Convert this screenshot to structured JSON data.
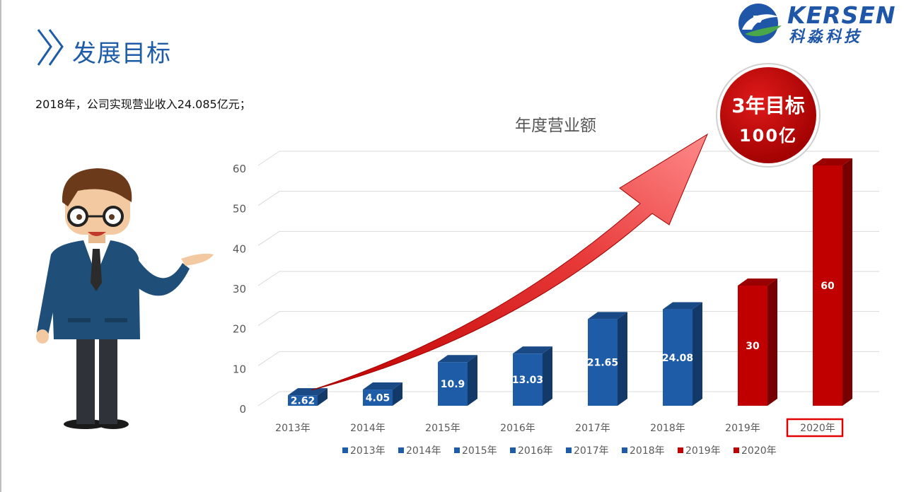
{
  "header": {
    "title": "发展目标",
    "summary": "2018年，公司实现营业收入24.085亿元；"
  },
  "logo": {
    "en": "KERSEN",
    "cn": "科淼科技"
  },
  "badge": {
    "line1": "3年目标",
    "line2": "100亿"
  },
  "colors": {
    "actual": "#1f5ca8",
    "target": "#c00000",
    "title": "#1f5ca8"
  },
  "chart_data": {
    "type": "bar",
    "title": "年度营业额",
    "categories": [
      "2013年",
      "2014年",
      "2015年",
      "2016年",
      "2017年",
      "2018年",
      "2019年",
      "2020年"
    ],
    "values": [
      2.62,
      4.05,
      10.9,
      13.03,
      21.65,
      24.08,
      30,
      60
    ],
    "data_labels": [
      "2.62",
      "4.05",
      "10.9",
      "13.03",
      "21.65",
      "24.08",
      "30",
      "60"
    ],
    "colors": [
      "#1f5ca8",
      "#1f5ca8",
      "#1f5ca8",
      "#1f5ca8",
      "#1f5ca8",
      "#1f5ca8",
      "#c00000",
      "#c00000"
    ],
    "ylim": [
      0,
      60
    ],
    "yticks": [
      0,
      10,
      20,
      30,
      40,
      50,
      60
    ],
    "highlight_category": "2020年",
    "grid": true,
    "legend": "bottom"
  }
}
